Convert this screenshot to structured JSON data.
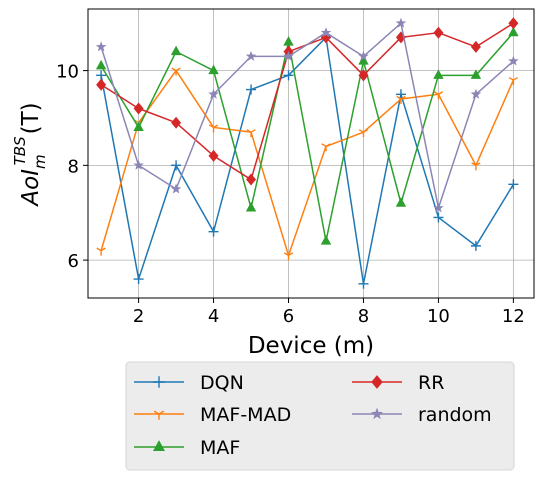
{
  "chart_data": {
    "type": "line",
    "title": "",
    "xlabel": "Device (m)",
    "ylabel": {
      "base": "AoI",
      "sub": "m",
      "sup": "TBS",
      "suffix": "(T)"
    },
    "x": [
      1,
      2,
      3,
      4,
      5,
      6,
      7,
      8,
      9,
      10,
      11,
      12
    ],
    "xlim": [
      0.65,
      12.55
    ],
    "ylim": [
      5.2,
      11.3
    ],
    "xticks": [
      2,
      4,
      6,
      8,
      10,
      12
    ],
    "yticks": [
      6,
      8,
      10
    ],
    "grid": true,
    "legend_position": "below plot, two columns",
    "series": [
      {
        "name": "DQN",
        "color": "#1f77b4",
        "marker": "plus",
        "values": [
          9.9,
          5.6,
          8.0,
          6.6,
          9.6,
          9.9,
          10.7,
          5.5,
          9.5,
          6.9,
          6.3,
          7.6
        ]
      },
      {
        "name": "MAF-MAD",
        "color": "#ff7f0e",
        "marker": "tri",
        "values": [
          6.2,
          8.9,
          10.0,
          8.8,
          8.7,
          6.1,
          8.4,
          8.7,
          9.4,
          9.5,
          8.0,
          9.8
        ]
      },
      {
        "name": "MAF",
        "color": "#2ca02c",
        "marker": "triangle",
        "values": [
          10.1,
          8.8,
          10.4,
          10.0,
          7.1,
          10.6,
          6.4,
          10.2,
          7.2,
          9.9,
          9.9,
          10.8
        ]
      },
      {
        "name": "RR",
        "color": "#d62728",
        "marker": "diamond",
        "values": [
          9.7,
          9.2,
          8.9,
          8.2,
          7.7,
          10.4,
          10.7,
          9.9,
          10.7,
          10.8,
          10.5,
          11.0
        ]
      },
      {
        "name": "random",
        "color": "#8c86b6",
        "marker": "star",
        "values": [
          10.5,
          8.0,
          7.5,
          9.5,
          10.3,
          10.3,
          10.8,
          10.3,
          11.0,
          7.1,
          9.5,
          10.2
        ]
      }
    ]
  }
}
